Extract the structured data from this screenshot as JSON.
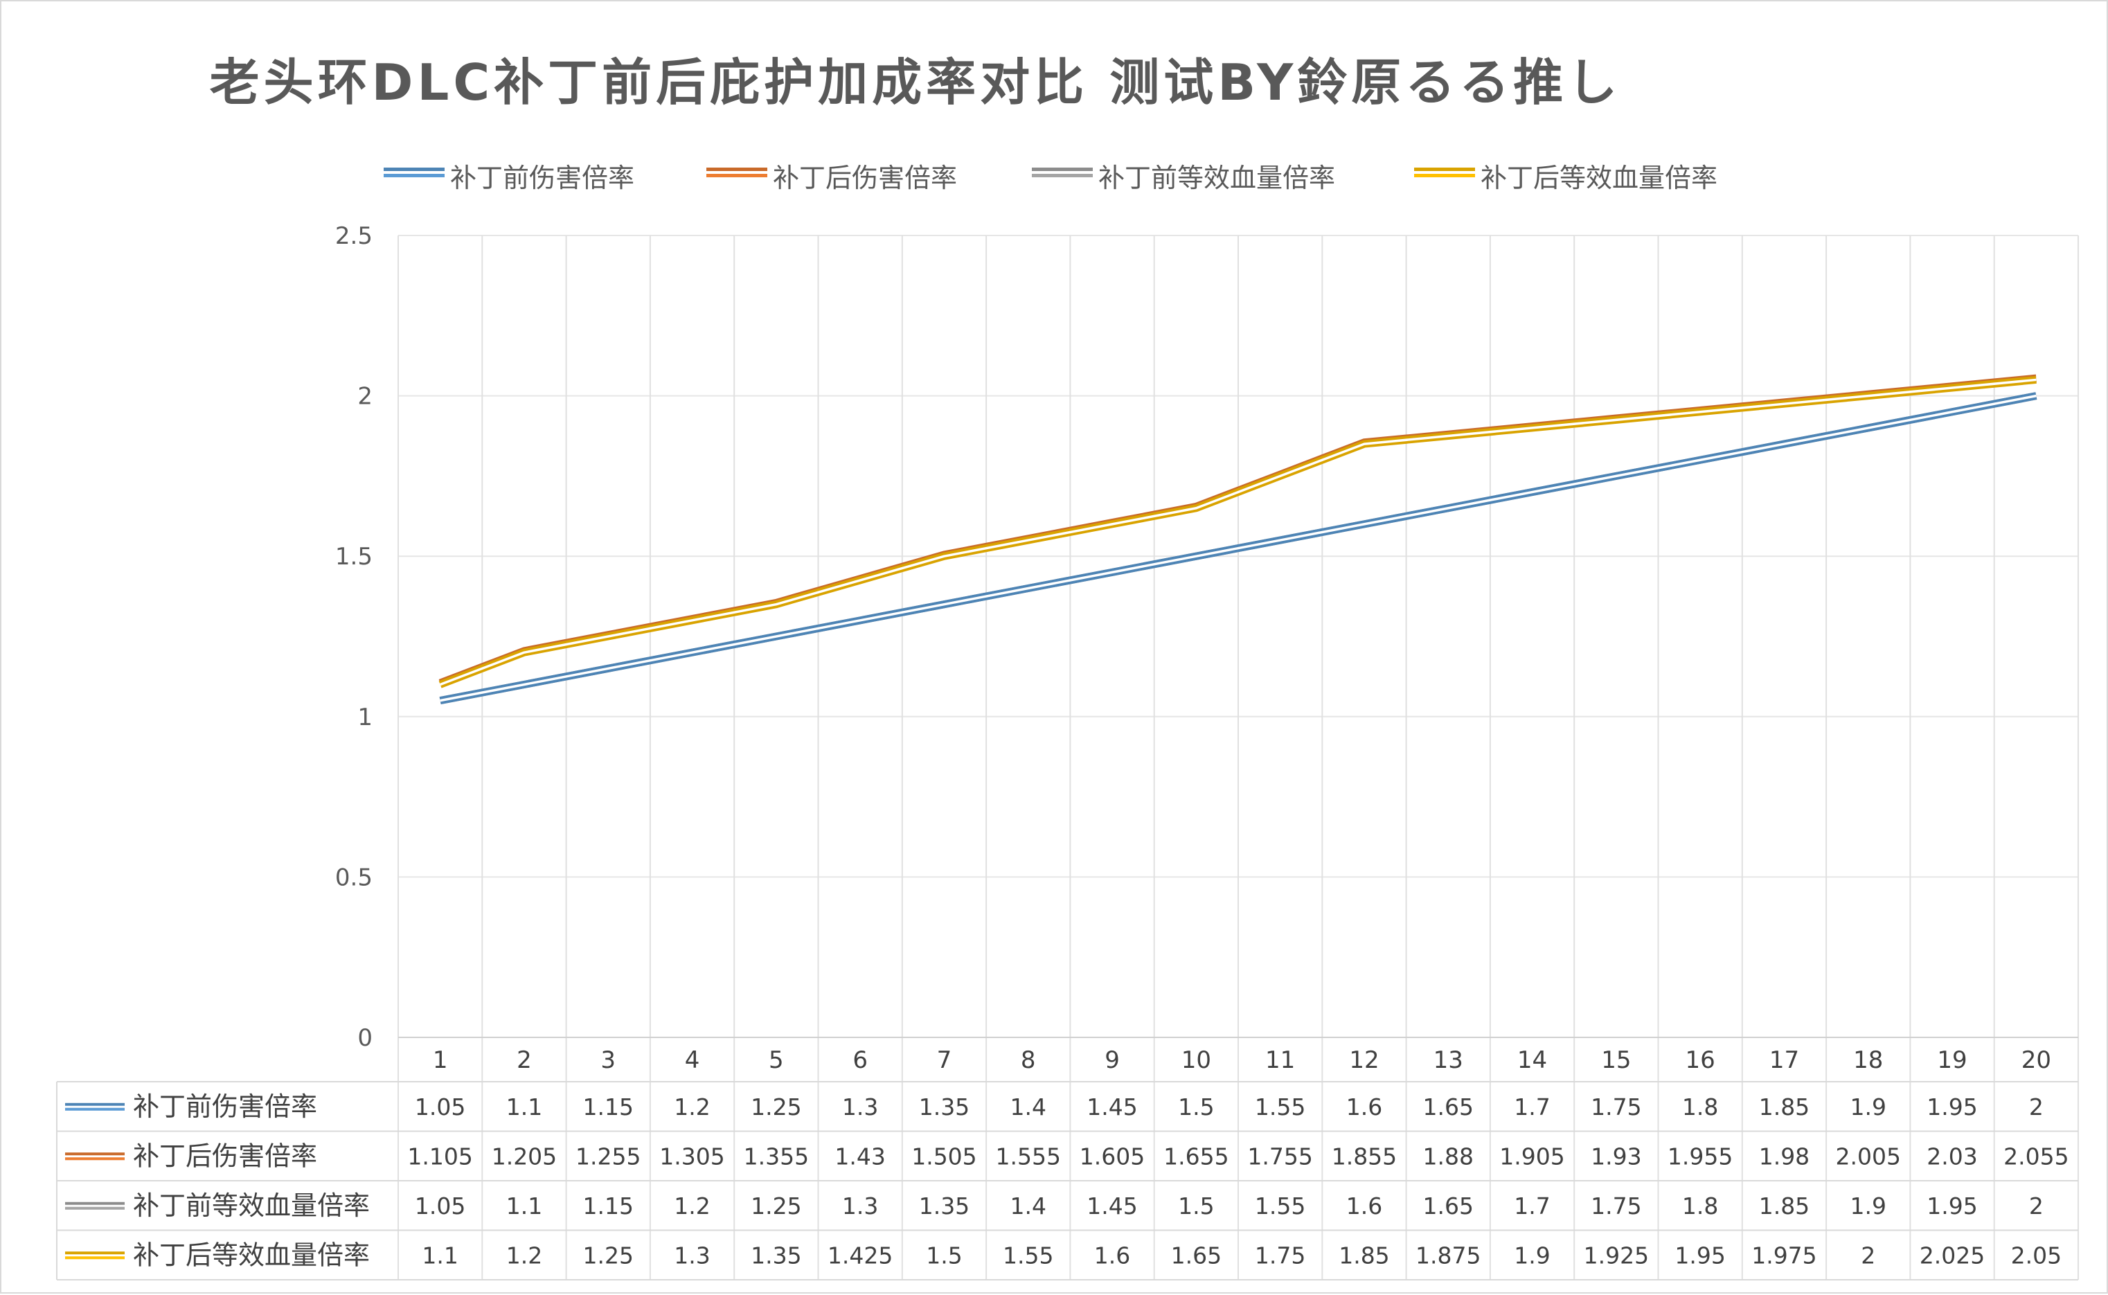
{
  "chart_data": {
    "type": "line",
    "title": "老头环DLC补丁前后庇护加成率对比 测试BY鈴原るる推し",
    "categories": [
      "1",
      "2",
      "3",
      "4",
      "5",
      "6",
      "7",
      "8",
      "9",
      "10",
      "11",
      "12",
      "13",
      "14",
      "15",
      "16",
      "17",
      "18",
      "19",
      "20"
    ],
    "yticks": [
      "0",
      "0.5",
      "1",
      "1.5",
      "2",
      "2.5"
    ],
    "ylim": [
      0,
      2.5
    ],
    "grid": true,
    "legend_position": "top",
    "data_table": true,
    "series": [
      {
        "name": "补丁前伤害倍率",
        "color": "#5b9bd5",
        "values": [
          1.05,
          1.1,
          1.15,
          1.2,
          1.25,
          1.3,
          1.35,
          1.4,
          1.45,
          1.5,
          1.55,
          1.6,
          1.65,
          1.7,
          1.75,
          1.8,
          1.85,
          1.9,
          1.95,
          2
        ],
        "labels": [
          "1.05",
          "1.1",
          "1.15",
          "1.2",
          "1.25",
          "1.3",
          "1.35",
          "1.4",
          "1.45",
          "1.5",
          "1.55",
          "1.6",
          "1.65",
          "1.7",
          "1.75",
          "1.8",
          "1.85",
          "1.9",
          "1.95",
          "2"
        ]
      },
      {
        "name": "补丁后伤害倍率",
        "color": "#ed7d31",
        "values": [
          1.105,
          1.205,
          1.255,
          1.305,
          1.355,
          1.43,
          1.505,
          1.555,
          1.605,
          1.655,
          1.755,
          1.855,
          1.88,
          1.905,
          1.93,
          1.955,
          1.98,
          2.005,
          2.03,
          2.055
        ],
        "labels": [
          "1.105",
          "1.205",
          "1.255",
          "1.305",
          "1.355",
          "1.43",
          "1.505",
          "1.555",
          "1.605",
          "1.655",
          "1.755",
          "1.855",
          "1.88",
          "1.905",
          "1.93",
          "1.955",
          "1.98",
          "2.005",
          "2.03",
          "2.055"
        ]
      },
      {
        "name": "补丁前等效血量倍率",
        "color": "#a5a5a5",
        "values": [
          1.05,
          1.1,
          1.15,
          1.2,
          1.25,
          1.3,
          1.35,
          1.4,
          1.45,
          1.5,
          1.55,
          1.6,
          1.65,
          1.7,
          1.75,
          1.8,
          1.85,
          1.9,
          1.95,
          2
        ],
        "labels": [
          "1.05",
          "1.1",
          "1.15",
          "1.2",
          "1.25",
          "1.3",
          "1.35",
          "1.4",
          "1.45",
          "1.5",
          "1.55",
          "1.6",
          "1.65",
          "1.7",
          "1.75",
          "1.8",
          "1.85",
          "1.9",
          "1.95",
          "2"
        ]
      },
      {
        "name": "补丁后等效血量倍率",
        "color": "#ffc000",
        "values": [
          1.1,
          1.2,
          1.25,
          1.3,
          1.35,
          1.425,
          1.5,
          1.55,
          1.6,
          1.65,
          1.75,
          1.85,
          1.875,
          1.9,
          1.925,
          1.95,
          1.975,
          2,
          2.025,
          2.05
        ],
        "labels": [
          "1.1",
          "1.2",
          "1.25",
          "1.3",
          "1.35",
          "1.425",
          "1.5",
          "1.55",
          "1.6",
          "1.65",
          "1.75",
          "1.85",
          "1.875",
          "1.9",
          "1.925",
          "1.95",
          "1.975",
          "2",
          "2.025",
          "2.05"
        ]
      }
    ]
  }
}
